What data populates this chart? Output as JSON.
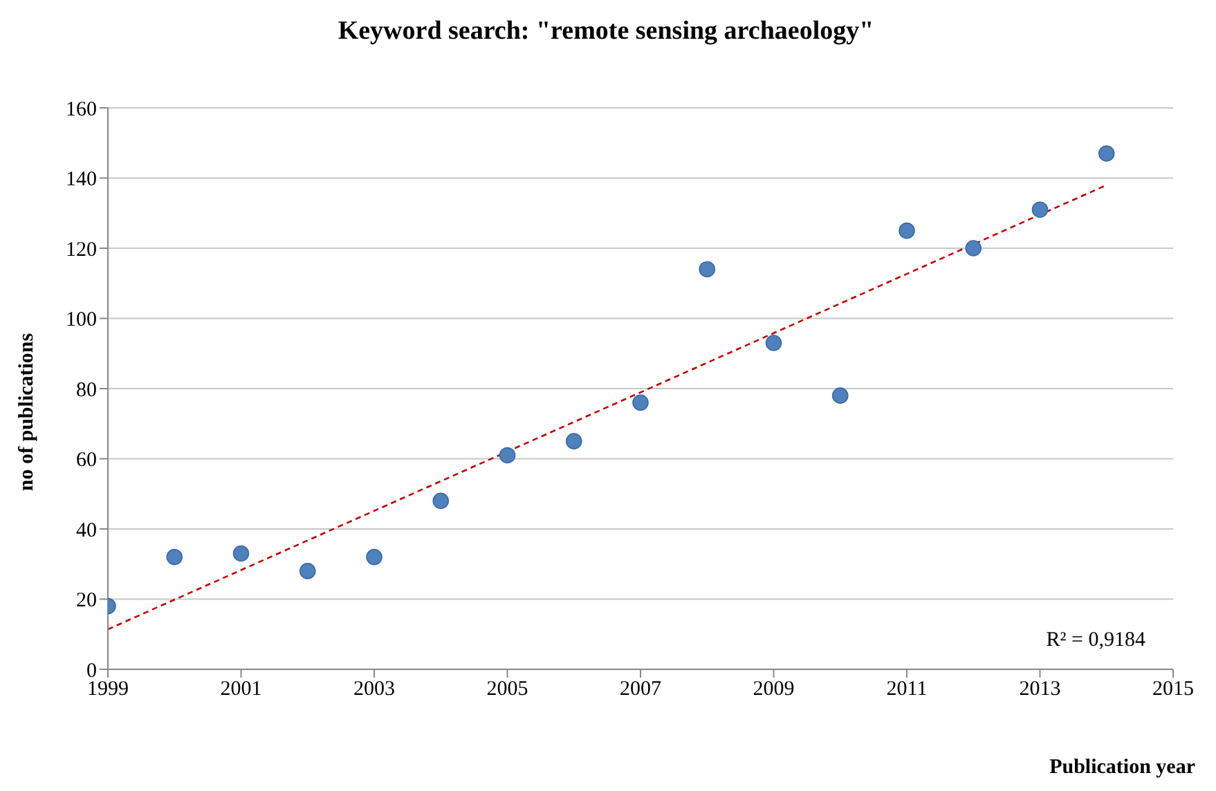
{
  "chart_data": {
    "type": "scatter",
    "title": "Keyword search: \"remote sensing archaeology\"",
    "xlabel": "Publication year",
    "ylabel": "no of publications",
    "x": [
      1999,
      2000,
      2001,
      2002,
      2003,
      2004,
      2005,
      2006,
      2007,
      2008,
      2009,
      2010,
      2011,
      2012,
      2013,
      2014
    ],
    "series": [
      {
        "color": "#4f81bd",
        "marker": "circle",
        "values": [
          18,
          32,
          33,
          28,
          32,
          48,
          61,
          65,
          76,
          114,
          93,
          78,
          125,
          120,
          131,
          147
        ]
      },
      {
        "type": "line",
        "color": "#c00000",
        "x": [
          1999,
          2014
        ],
        "values": [
          11.4,
          138
        ],
        "line_style": "dashed",
        "marker": "none"
      }
    ],
    "xlim": [
      1999,
      2015
    ],
    "xticks": [
      1999,
      2001,
      2003,
      2005,
      2007,
      2009,
      2011,
      2013,
      2015
    ],
    "ylim": [
      0,
      160
    ],
    "yticks": [
      0,
      20,
      40,
      60,
      80,
      100,
      120,
      140,
      160
    ],
    "grid": "y",
    "legend": false,
    "annotations": [
      "R² = 0,9184"
    ]
  }
}
